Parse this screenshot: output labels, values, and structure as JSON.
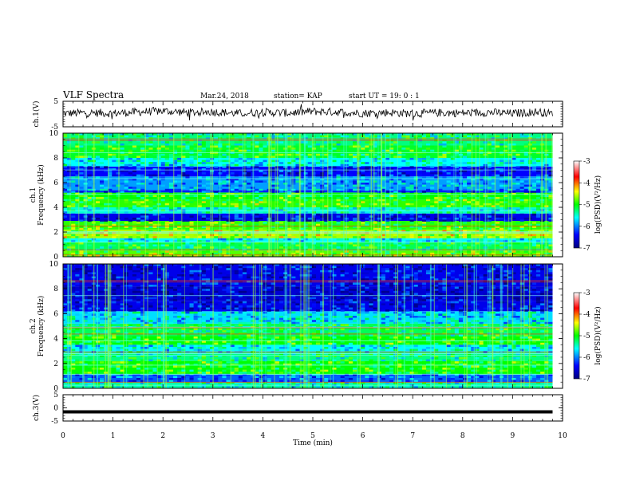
{
  "header": {
    "title": "VLF Spectra",
    "date": "Mar.24, 2018",
    "station": "station= KAP",
    "start": "start  UT =   19: 0  : 1"
  },
  "chart_data": [
    {
      "type": "line",
      "panel": "ch1-waveform",
      "ylabel": "ch.1(V)",
      "ylim": [
        -5,
        5
      ],
      "yticks": [
        "5",
        "-5"
      ],
      "xlim": [
        0,
        10
      ],
      "series": [
        {
          "x": [
            0,
            0.5,
            1,
            1.5,
            2,
            2.5,
            3,
            3.5,
            4,
            4.5,
            5,
            5.5,
            6,
            6.5,
            7,
            7.5,
            8,
            8.5,
            9,
            9.5,
            9.8
          ],
          "values": [
            0.2,
            0.5,
            0.3,
            0.8,
            1.2,
            0.6,
            0.9,
            0.2,
            0.7,
            0.4,
            1.0,
            0.8,
            0.3,
            0.6,
            0.2,
            0.5,
            0.4,
            0.7,
            0.2,
            0.9,
            0.1
          ]
        }
      ]
    },
    {
      "type": "heatmap",
      "panel": "ch1-spectrogram",
      "ylabel": "ch.1 Frequency (kHz)",
      "ylim": [
        0,
        10
      ],
      "yticks": [
        "0",
        "2",
        "4",
        "6",
        "8",
        "10"
      ],
      "xlim": [
        0,
        10
      ],
      "colorbar": {
        "label": "log(PSD)(V²/Hz)",
        "range": [
          -7,
          -3
        ],
        "ticks": [
          "-3",
          "-4",
          "-5",
          "-6",
          "-7"
        ]
      },
      "bands": [
        {
          "f0": 0.0,
          "f1": 0.5,
          "level": -4.8
        },
        {
          "f0": 0.5,
          "f1": 1.2,
          "level": -5.2
        },
        {
          "f0": 1.2,
          "f1": 1.5,
          "level": -5.6
        },
        {
          "f0": 1.5,
          "f1": 2.2,
          "level": -4.6
        },
        {
          "f0": 2.2,
          "f1": 2.9,
          "level": -4.9
        },
        {
          "f0": 2.9,
          "f1": 3.5,
          "level": -6.5
        },
        {
          "f0": 3.5,
          "f1": 4.0,
          "level": -5.5
        },
        {
          "f0": 4.0,
          "f1": 4.6,
          "level": -4.9
        },
        {
          "f0": 4.6,
          "f1": 5.2,
          "level": -5.0
        },
        {
          "f0": 5.2,
          "f1": 5.4,
          "level": -6.3
        },
        {
          "f0": 5.4,
          "f1": 6.5,
          "level": -5.9
        },
        {
          "f0": 6.5,
          "f1": 7.3,
          "level": -6.4
        },
        {
          "f0": 7.3,
          "f1": 8.0,
          "level": -5.6
        },
        {
          "f0": 8.0,
          "f1": 9.0,
          "level": -5.1
        },
        {
          "f0": 9.0,
          "f1": 10.0,
          "level": -5.3
        }
      ]
    },
    {
      "type": "heatmap",
      "panel": "ch2-spectrogram",
      "ylabel": "ch.2 Frequency (kHz)",
      "ylim": [
        0,
        10
      ],
      "yticks": [
        "0",
        "2",
        "4",
        "6",
        "8",
        "10"
      ],
      "xlim": [
        0,
        10
      ],
      "colorbar": {
        "label": "log(PSD)(V²/Hz)",
        "range": [
          -7,
          -3
        ],
        "ticks": [
          "-3",
          "-4",
          "-5",
          "-6",
          "-7"
        ]
      },
      "bands": [
        {
          "f0": 0.0,
          "f1": 0.5,
          "level": -5.4
        },
        {
          "f0": 0.5,
          "f1": 1.1,
          "level": -6.1
        },
        {
          "f0": 1.1,
          "f1": 2.2,
          "level": -5.0
        },
        {
          "f0": 2.2,
          "f1": 2.9,
          "level": -5.3
        },
        {
          "f0": 2.9,
          "f1": 3.5,
          "level": -5.6
        },
        {
          "f0": 3.5,
          "f1": 4.2,
          "level": -5.0
        },
        {
          "f0": 4.2,
          "f1": 5.2,
          "level": -5.2
        },
        {
          "f0": 5.2,
          "f1": 6.2,
          "level": -5.7
        },
        {
          "f0": 6.2,
          "f1": 7.0,
          "level": -6.5
        },
        {
          "f0": 7.0,
          "f1": 8.2,
          "level": -6.6
        },
        {
          "f0": 8.2,
          "f1": 10.0,
          "level": -6.5
        }
      ]
    },
    {
      "type": "line",
      "panel": "ch3-waveform",
      "ylabel": "ch.3(V)",
      "ylim": [
        -5,
        5
      ],
      "yticks": [
        "5",
        "0",
        "-5"
      ],
      "xlim": [
        0,
        10
      ],
      "xlabel": "Time  (min)",
      "xticks": [
        "0",
        "1",
        "2",
        "3",
        "4",
        "5",
        "6",
        "7",
        "8",
        "9",
        "10"
      ],
      "series": [
        {
          "x": [
            0,
            9.8
          ],
          "values": [
            -1.5,
            -1.5
          ]
        }
      ]
    }
  ]
}
